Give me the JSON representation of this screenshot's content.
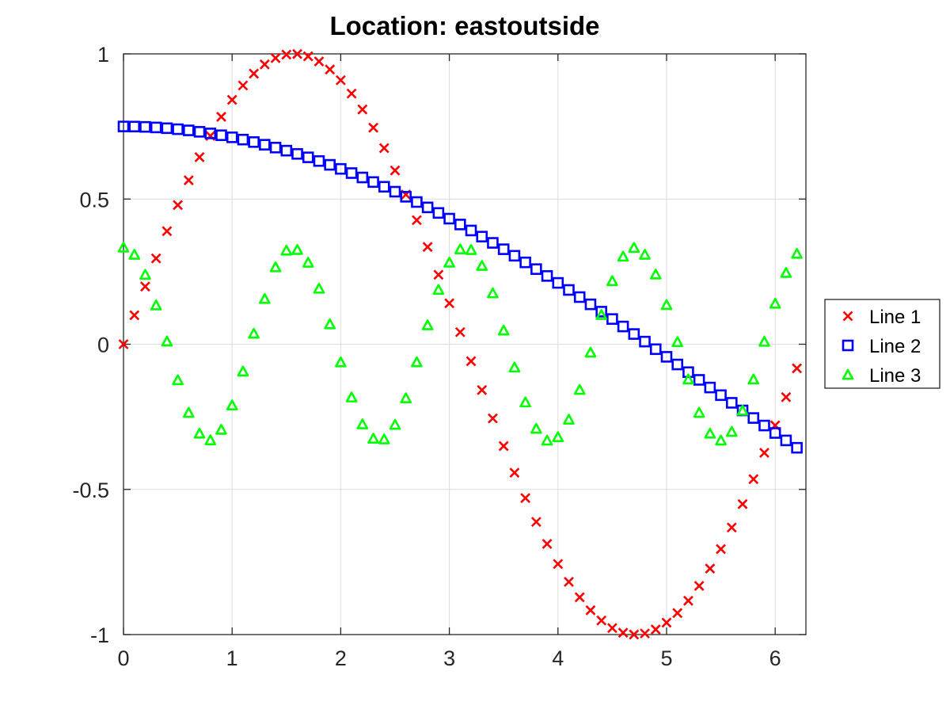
{
  "chart_data": {
    "type": "scatter",
    "title": "Location: eastoutside",
    "xlabel": "",
    "ylabel": "",
    "xlim": [
      0,
      6.283
    ],
    "ylim": [
      -1,
      1
    ],
    "xticks": [
      0,
      1,
      2,
      3,
      4,
      5,
      6
    ],
    "xtick_labels": [
      "0",
      "1",
      "2",
      "3",
      "4",
      "5",
      "6"
    ],
    "yticks": [
      -1,
      -0.5,
      0,
      0.5,
      1
    ],
    "ytick_labels": [
      "-1",
      "-0.5",
      "0",
      "0.5",
      "1"
    ],
    "grid": true,
    "legend_location": "eastoutside",
    "x": [
      0,
      0.1,
      0.2,
      0.3,
      0.4,
      0.5,
      0.6,
      0.7,
      0.8,
      0.9,
      1.0,
      1.1,
      1.2,
      1.3,
      1.4,
      1.5,
      1.6,
      1.7,
      1.8,
      1.9,
      2.0,
      2.1,
      2.2,
      2.3,
      2.4,
      2.5,
      2.6,
      2.7,
      2.8,
      2.9,
      3.0,
      3.1,
      3.2,
      3.3,
      3.4,
      3.5,
      3.6,
      3.7,
      3.8,
      3.9,
      4.0,
      4.1,
      4.2,
      4.3,
      4.4,
      4.5,
      4.6,
      4.7,
      4.8,
      4.9,
      5.0,
      5.1,
      5.2,
      5.3,
      5.4,
      5.5,
      5.6,
      5.7,
      5.8,
      5.9,
      6.0,
      6.1,
      6.2
    ],
    "series": [
      {
        "name": "Line 1",
        "marker": "x",
        "color": "#ff0000",
        "values": [
          0,
          0.0998,
          0.1987,
          0.2955,
          0.3894,
          0.4794,
          0.5646,
          0.6442,
          0.7174,
          0.7833,
          0.8415,
          0.8912,
          0.932,
          0.9636,
          0.9854,
          0.9975,
          0.9996,
          0.9917,
          0.9738,
          0.9463,
          0.9093,
          0.8632,
          0.8085,
          0.7457,
          0.6755,
          0.5985,
          0.5155,
          0.4274,
          0.335,
          0.2392,
          0.1411,
          0.0416,
          -0.0584,
          -0.1577,
          -0.2555,
          -0.3508,
          -0.4425,
          -0.5298,
          -0.6119,
          -0.6878,
          -0.7568,
          -0.8183,
          -0.8716,
          -0.9162,
          -0.9516,
          -0.9775,
          -0.9937,
          -0.9999,
          -0.9962,
          -0.9825,
          -0.9589,
          -0.9258,
          -0.8835,
          -0.8323,
          -0.7728,
          -0.7055,
          -0.6313,
          -0.5507,
          -0.4646,
          -0.3739,
          -0.2794,
          -0.1822,
          -0.0831
        ]
      },
      {
        "name": "Line 2",
        "marker": "square",
        "color": "#0000ff",
        "values": [
          0.75,
          0.7496,
          0.7485,
          0.7466,
          0.744,
          0.7406,
          0.7365,
          0.7316,
          0.726,
          0.7197,
          0.7126,
          0.7048,
          0.6963,
          0.6871,
          0.6773,
          0.6667,
          0.6555,
          0.6436,
          0.631,
          0.6178,
          0.6039,
          0.5894,
          0.5743,
          0.5586,
          0.5423,
          0.5253,
          0.5079,
          0.4898,
          0.4712,
          0.4521,
          0.4325,
          0.4124,
          0.3917,
          0.3706,
          0.3491,
          0.3271,
          0.3047,
          0.2819,
          0.2587,
          0.2351,
          0.2112,
          0.1869,
          0.1623,
          0.1374,
          0.1122,
          0.0868,
          0.0611,
          0.0352,
          0.0091,
          -0.0171,
          -0.0434,
          -0.0698,
          -0.0962,
          -0.1227,
          -0.1491,
          -0.1755,
          -0.2018,
          -0.228,
          -0.2541,
          -0.28,
          -0.3057,
          -0.3313,
          -0.3566
        ]
      },
      {
        "name": "Line 3",
        "marker": "triangle",
        "color": "#00ff00",
        "values": [
          0.3333,
          0.3085,
          0.2396,
          0.1341,
          0.0096,
          -0.1236,
          -0.2358,
          -0.3075,
          -0.3306,
          -0.2942,
          -0.2103,
          -0.0936,
          0.0366,
          0.1563,
          0.2653,
          0.3228,
          0.3252,
          0.2812,
          0.1916,
          0.0691,
          -0.0621,
          -0.1829,
          -0.2755,
          -0.3249,
          -0.3273,
          -0.2772,
          -0.1859,
          -0.0617,
          0.0655,
          0.1876,
          0.2814,
          0.3271,
          0.3249,
          0.2701,
          0.1756,
          0.0474,
          -0.0799,
          -0.1999,
          -0.2908,
          -0.3316,
          -0.3197,
          -0.2594,
          -0.1568,
          -0.0285,
          0.1011,
          0.2178,
          0.3021,
          0.3324,
          0.3085,
          0.2405,
          0.1355,
          0.0077,
          -0.1211,
          -0.2358,
          -0.3075,
          -0.3313,
          -0.3014,
          -0.2286,
          -0.1211,
          0.0088,
          0.1399,
          0.2459,
          0.3118
        ]
      }
    ]
  }
}
